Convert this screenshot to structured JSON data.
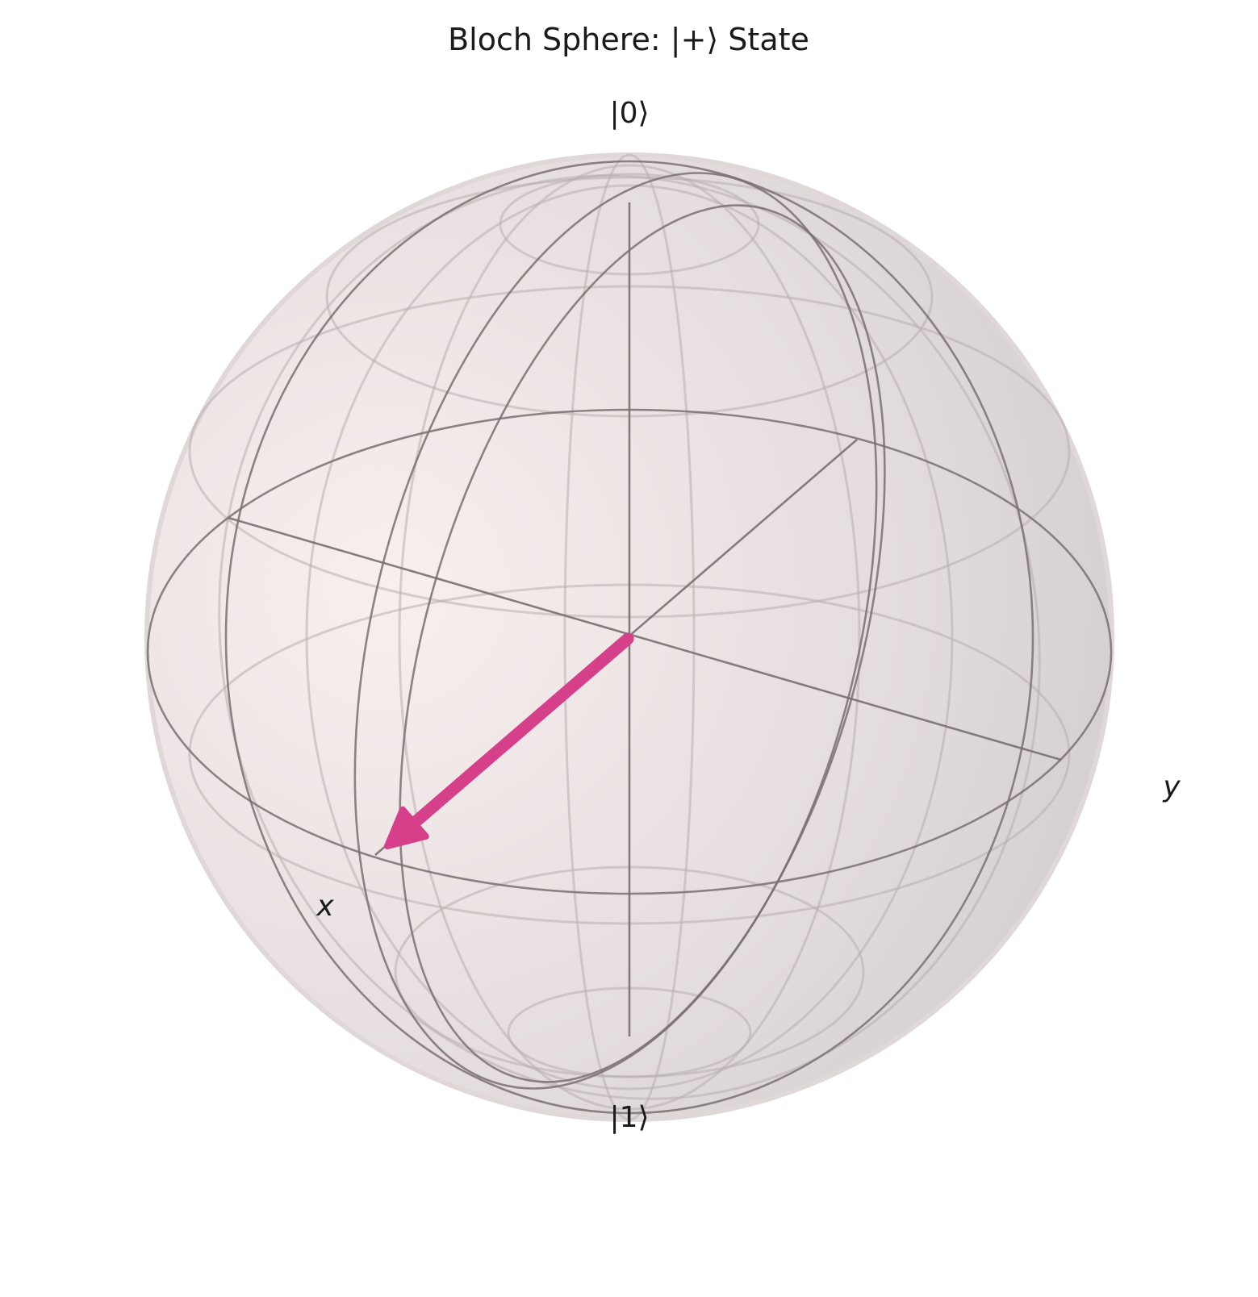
{
  "title": "Bloch Sphere: |+⟩ State",
  "labels": {
    "north": "|0⟩",
    "south": "|1⟩",
    "x_axis": "x",
    "y_axis": "y"
  },
  "state_vector": {
    "name": "|+⟩",
    "x": 1,
    "y": 0,
    "z": 0,
    "color": "#d63f8a"
  },
  "colors": {
    "sphere_light": "#f7ecec",
    "sphere_dark": "#cfc9c9",
    "wireframe": "#7a7070"
  }
}
